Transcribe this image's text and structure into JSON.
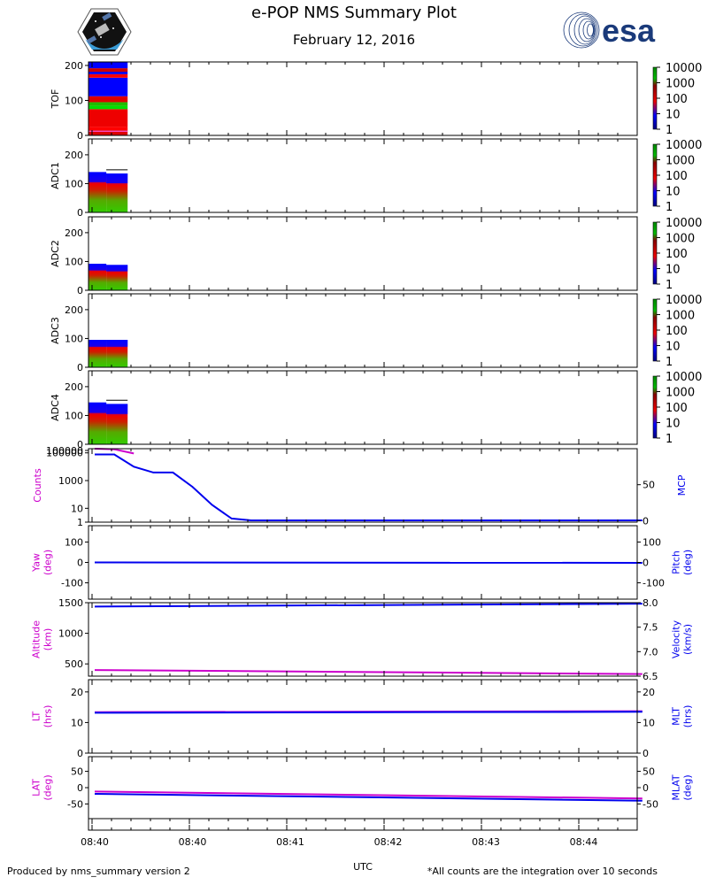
{
  "header": {
    "title": "e-POP NMS Summary Plot",
    "date": "February 12, 2016",
    "esa_logo_text": "esa",
    "mission_logo_label": "e-POP mission patch"
  },
  "footer": {
    "left": "Produced by nms_summary version 2",
    "right": "*All counts are the integration over 10 seconds",
    "xlabel": "UTC"
  },
  "colors": {
    "magenta": "#cc00cc",
    "blue": "#0000ee",
    "red": "#ee0000",
    "green": "#00cc00"
  },
  "chart_data": {
    "type": "multi-panel",
    "xticks": [
      "08:40",
      "08:40",
      "08:41",
      "08:42",
      "08:43",
      "08:44"
    ],
    "colorbar_ticks": [
      "1",
      "10",
      "100",
      "1000",
      "10000"
    ],
    "spectrograms": [
      {
        "name": "TOF",
        "ylabel": "TOF",
        "ylim": [
          0,
          210
        ],
        "yticks": [
          "0",
          "100",
          "200"
        ],
        "x_extent": [
          0,
          0.4
        ]
      },
      {
        "name": "ADC1",
        "ylabel": "ADC1",
        "ylim": [
          0,
          255
        ],
        "yticks": [
          "0",
          "100",
          "200"
        ],
        "x_extent": [
          0,
          0.4
        ],
        "top_levels": [
          140,
          135
        ]
      },
      {
        "name": "ADC2",
        "ylabel": "ADC2",
        "ylim": [
          0,
          255
        ],
        "yticks": [
          "0",
          "100",
          "200"
        ],
        "x_extent": [
          0,
          0.4
        ],
        "top_levels": [
          92,
          88
        ]
      },
      {
        "name": "ADC3",
        "ylabel": "ADC3",
        "ylim": [
          0,
          255
        ],
        "yticks": [
          "0",
          "100",
          "200"
        ],
        "x_extent": [
          0,
          0.4
        ],
        "top_levels": [
          95,
          95
        ]
      },
      {
        "name": "ADC4",
        "ylabel": "ADC4",
        "ylim": [
          0,
          255
        ],
        "yticks": [
          "0",
          "100",
          "200"
        ],
        "x_extent": [
          0,
          0.4
        ],
        "top_levels": [
          145,
          140
        ]
      }
    ],
    "line_panels": [
      {
        "left_label": [
          "Counts"
        ],
        "right_label": [
          "MCP"
        ],
        "left_ticks": [
          "1",
          "10",
          "1000",
          "100000",
          "100000"
        ],
        "right_ticks": [
          "0",
          "50"
        ],
        "series": [
          {
            "axis": "left",
            "color": "magenta",
            "log": true,
            "ylim": [
              1,
              200000
            ],
            "x": [
              0,
              0.2,
              0.4
            ],
            "y": [
              200000,
              180000,
              90000
            ]
          },
          {
            "axis": "right",
            "color": "blue",
            "ylim": [
              -2,
              100
            ],
            "x": [
              0,
              0.2,
              0.4,
              0.6,
              0.8,
              1.0,
              1.2,
              1.4,
              1.6,
              5.6
            ],
            "y": [
              92,
              92,
              75,
              67,
              67,
              47,
              22,
              3,
              0.5,
              0.5
            ]
          }
        ]
      },
      {
        "left_label": [
          "Yaw",
          "(deg)"
        ],
        "right_label": [
          "Pitch",
          "(deg)"
        ],
        "left_ticks": [
          "-100",
          "0",
          "100"
        ],
        "right_ticks": [
          "-100",
          "0",
          "100"
        ],
        "series": [
          {
            "axis": "left",
            "color": "blue",
            "ylim": [
              -180,
              180
            ],
            "x": [
              0,
              5.6
            ],
            "y": [
              0,
              -2
            ]
          }
        ]
      },
      {
        "left_label": [
          "Altitude",
          "(km)"
        ],
        "right_label": [
          "Velocity",
          "(km/s)"
        ],
        "left_ticks": [
          "500",
          "1000",
          "1500"
        ],
        "right_ticks": [
          "6.5",
          "7.0",
          "7.5",
          "8.0"
        ],
        "series": [
          {
            "axis": "left",
            "color": "magenta",
            "ylim": [
              300,
              1500
            ],
            "x": [
              0,
              5.6
            ],
            "y": [
              400,
              335
            ]
          },
          {
            "axis": "right",
            "color": "blue",
            "ylim": [
              6.5,
              8.0
            ],
            "x": [
              0,
              5.6
            ],
            "y": [
              7.92,
              7.98
            ]
          }
        ]
      },
      {
        "left_label": [
          "LT",
          "(hrs)"
        ],
        "right_label": [
          "MLT",
          "(hrs)"
        ],
        "left_ticks": [
          "0",
          "10",
          "20"
        ],
        "right_ticks": [
          "0",
          "10",
          "20"
        ],
        "series": [
          {
            "axis": "left",
            "color": "magenta",
            "ylim": [
              0,
              24
            ],
            "x": [
              0,
              5.6
            ],
            "y": [
              13.4,
              13.7
            ]
          },
          {
            "axis": "right",
            "color": "blue",
            "ylim": [
              0,
              24
            ],
            "x": [
              0,
              5.6
            ],
            "y": [
              13.2,
              13.5
            ]
          }
        ]
      },
      {
        "left_label": [
          "LAT",
          "(deg)"
        ],
        "right_label": [
          "MLAT",
          "(deg)"
        ],
        "left_ticks": [
          "-50",
          "0",
          "50"
        ],
        "right_ticks": [
          "-50",
          "0",
          "50"
        ],
        "series": [
          {
            "axis": "left",
            "color": "magenta",
            "ylim": [
              -95,
              95
            ],
            "x": [
              0,
              5.6
            ],
            "y": [
              -12,
              -33
            ]
          },
          {
            "axis": "right",
            "color": "blue",
            "ylim": [
              -95,
              95
            ],
            "x": [
              0,
              5.6
            ],
            "y": [
              -19,
              -40
            ]
          }
        ]
      }
    ]
  }
}
